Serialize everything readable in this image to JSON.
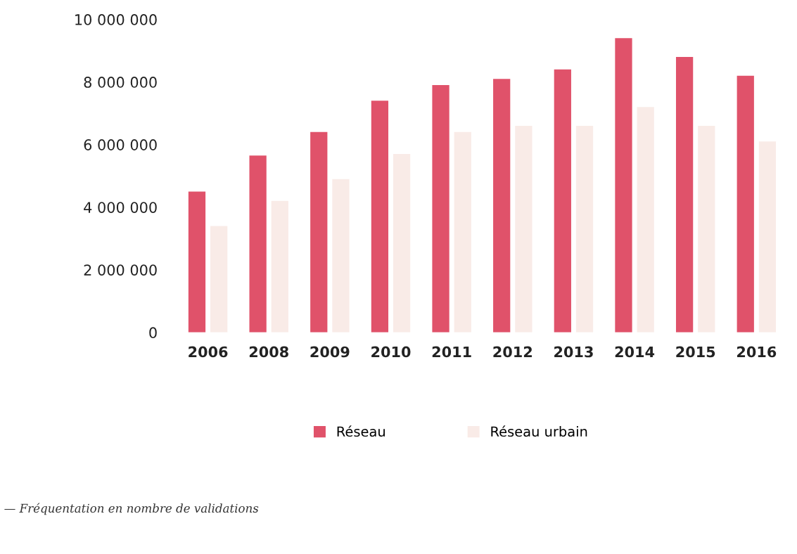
{
  "chart_data": {
    "type": "bar",
    "categories": [
      "2006",
      "2008",
      "2009",
      "2010",
      "2011",
      "2012",
      "2013",
      "2014",
      "2015",
      "2016"
    ],
    "series": [
      {
        "name": "Réseau",
        "color": "#e0526a",
        "values": [
          4500000,
          5650000,
          6400000,
          7400000,
          7900000,
          8100000,
          8400000,
          9400000,
          8800000,
          8200000
        ]
      },
      {
        "name": "Réseau urbain",
        "color": "#f9ebe7",
        "values": [
          3400000,
          4200000,
          4900000,
          5700000,
          6400000,
          6600000,
          6600000,
          7200000,
          6600000,
          6100000
        ]
      }
    ],
    "ylim": [
      0,
      10000000
    ],
    "yticks": [
      {
        "value": 0,
        "label": "0"
      },
      {
        "value": 2000000,
        "label": "2 000 000"
      },
      {
        "value": 4000000,
        "label": "4 000 000"
      },
      {
        "value": 6000000,
        "label": "6 000 000"
      },
      {
        "value": 8000000,
        "label": "8 000 000"
      },
      {
        "value": 10000000,
        "label": "10 000 000"
      }
    ],
    "grid": false,
    "legend": "bottom",
    "annotations": [
      "— Fréquentation en nombre de validations"
    ]
  }
}
